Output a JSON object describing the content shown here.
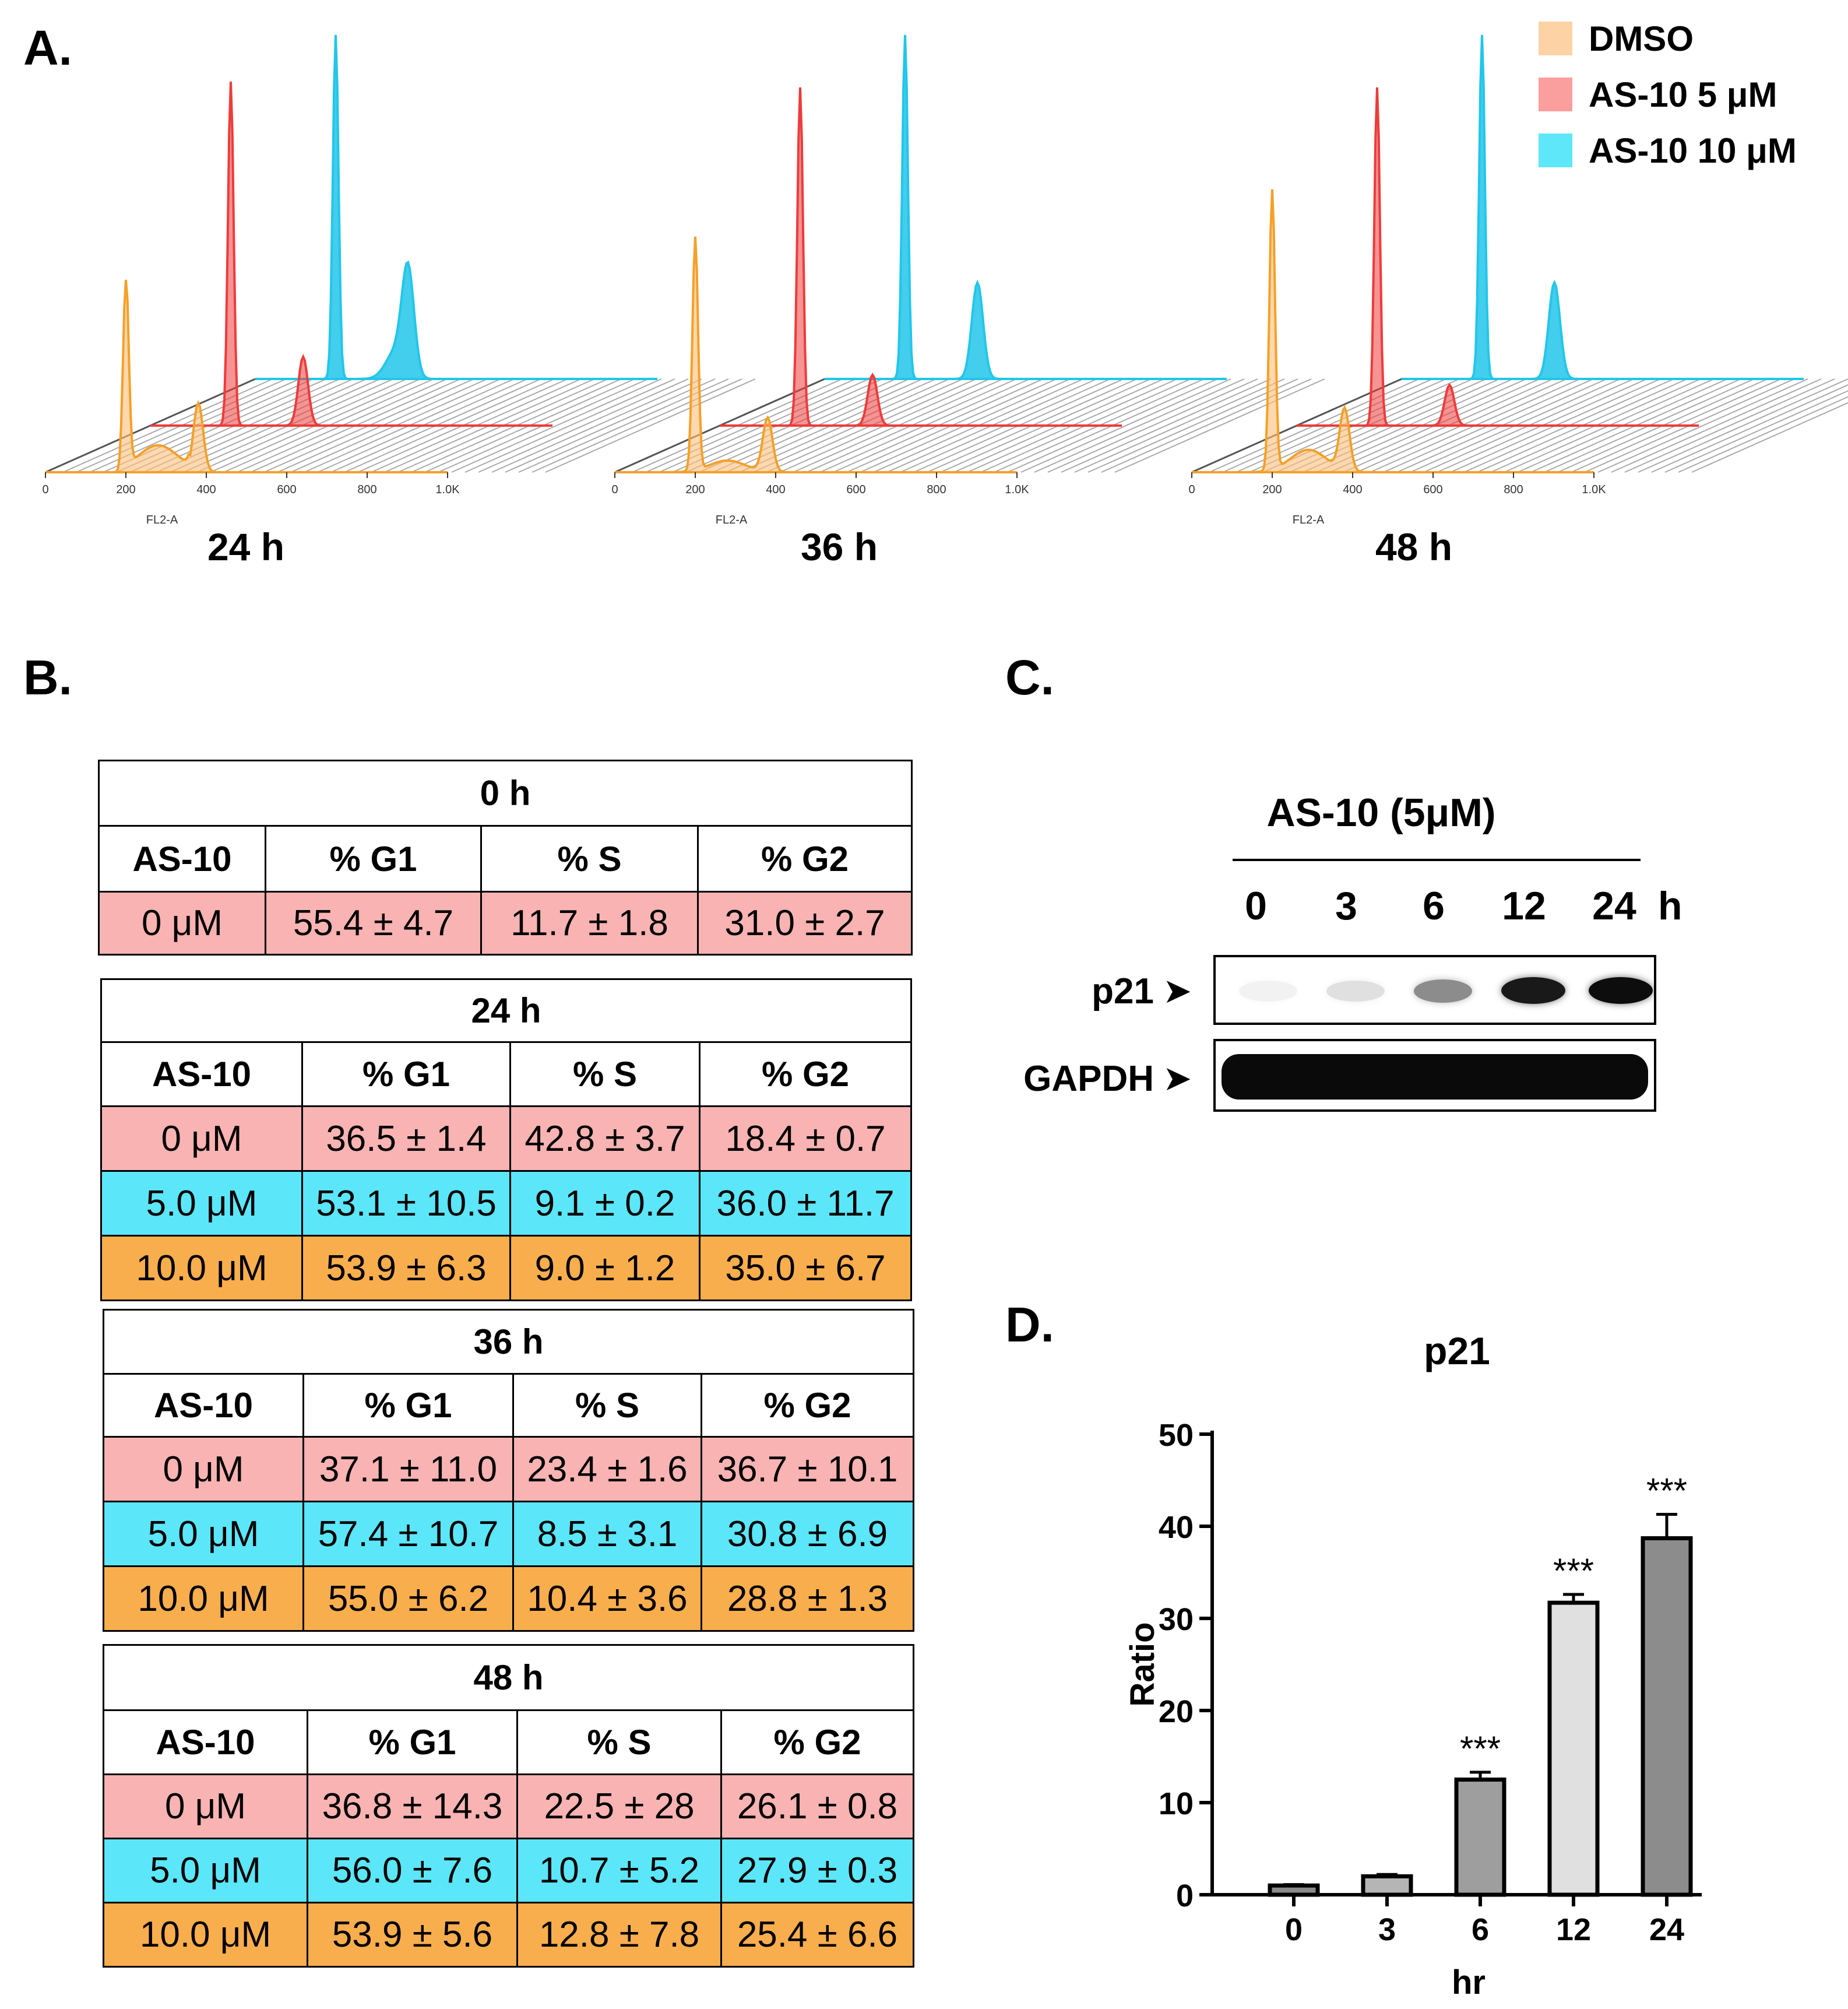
{
  "panels": {
    "a": "A.",
    "b": "B.",
    "c": "C.",
    "d": "D."
  },
  "legend": [
    {
      "label": "DMSO",
      "color": "#FDD3A6"
    },
    {
      "label": "AS-10 5 μM",
      "color": "#FB9E9E"
    },
    {
      "label": "AS-10 10 μM",
      "color": "#5EE7F8"
    }
  ],
  "histograms": {
    "axis_label": "FL2-A",
    "ticks": [
      "0",
      "200",
      "400",
      "600",
      "800",
      "1.0K"
    ],
    "timepoints": [
      "24 h",
      "36 h",
      "48 h"
    ],
    "colors": {
      "dmso": "#F5A028",
      "low": "#EE3B3B",
      "high": "#22C6EA"
    }
  },
  "tables": [
    {
      "title": "0 h",
      "headers": [
        "AS-10",
        "% G1",
        "% S",
        "% G2"
      ],
      "rows": [
        {
          "dose": "0 μM",
          "g1": "55.4 ± 4.7",
          "s": "11.7 ± 1.8",
          "g2": "31.0 ± 2.7",
          "color": "#F9B3B3"
        }
      ]
    },
    {
      "title": "24 h",
      "headers": [
        "AS-10",
        "% G1",
        "% S",
        "% G2"
      ],
      "rows": [
        {
          "dose": "0 μM",
          "g1": "36.5 ± 1.4",
          "s": "42.8 ± 3.7",
          "g2": "18.4 ± 0.7",
          "color": "#F9B3B3"
        },
        {
          "dose": "5.0 μM",
          "g1": "53.1 ± 10.5",
          "s": "9.1 ± 0.2",
          "g2": "36.0 ± 11.7",
          "color": "#5CE6F9"
        },
        {
          "dose": "10.0 μM",
          "g1": "53.9 ± 6.3",
          "s": "9.0 ± 1.2",
          "g2": "35.0 ± 6.7",
          "color": "#F9AE4E"
        }
      ]
    },
    {
      "title": "36 h",
      "headers": [
        "AS-10",
        "% G1",
        "% S",
        "% G2"
      ],
      "rows": [
        {
          "dose": "0 μM",
          "g1": "37.1 ± 11.0",
          "s": "23.4 ± 1.6",
          "g2": "36.7 ± 10.1",
          "color": "#F9B3B3"
        },
        {
          "dose": "5.0 μM",
          "g1": "57.4 ± 10.7",
          "s": "8.5 ± 3.1",
          "g2": "30.8 ± 6.9",
          "color": "#5CE6F9"
        },
        {
          "dose": "10.0 μM",
          "g1": "55.0 ± 6.2",
          "s": "10.4 ± 3.6",
          "g2": "28.8 ± 1.3",
          "color": "#F9AE4E"
        }
      ]
    },
    {
      "title": "48 h",
      "headers": [
        "AS-10",
        "% G1",
        "% S",
        "% G2"
      ],
      "rows": [
        {
          "dose": "0 μM",
          "g1": "36.8 ± 14.3",
          "s": "22.5 ± 28",
          "g2": "26.1 ± 0.8",
          "color": "#F9B3B3"
        },
        {
          "dose": "5.0 μM",
          "g1": "56.0 ± 7.6",
          "s": "10.7 ± 5.2",
          "g2": "27.9 ± 0.3",
          "color": "#5CE6F9"
        },
        {
          "dose": "10.0 μM",
          "g1": "53.9 ± 5.6",
          "s": "12.8 ± 7.8",
          "g2": "25.4 ± 6.6",
          "color": "#F9AE4E"
        }
      ]
    }
  ],
  "western": {
    "treatment": "AS-10 (5μM)",
    "lanes": [
      "0",
      "3",
      "6",
      "12",
      "24"
    ],
    "unit": "h",
    "p21_label": "p21",
    "gapdh_label": "GAPDH",
    "p21_intensity": [
      0.05,
      0.12,
      0.45,
      0.9,
      0.95
    ]
  },
  "chart_data": {
    "type": "bar",
    "title": "p21",
    "xlabel": "hr",
    "ylabel": "Ratio",
    "categories": [
      "0",
      "3",
      "6",
      "12",
      "24"
    ],
    "values": [
      1,
      2,
      12.5,
      31.7,
      38.7
    ],
    "errors": [
      0.1,
      0.2,
      0.8,
      0.9,
      2.6
    ],
    "significance": [
      "",
      "",
      "***",
      "***",
      "***"
    ],
    "colors": [
      "#8A8A8A",
      "#B5B5B5",
      "#9E9E9E",
      "#E0E0E0",
      "#8C8C8C"
    ],
    "ylim": [
      0,
      50
    ],
    "yticks": [
      "0",
      "10",
      "20",
      "30",
      "40",
      "50"
    ]
  }
}
